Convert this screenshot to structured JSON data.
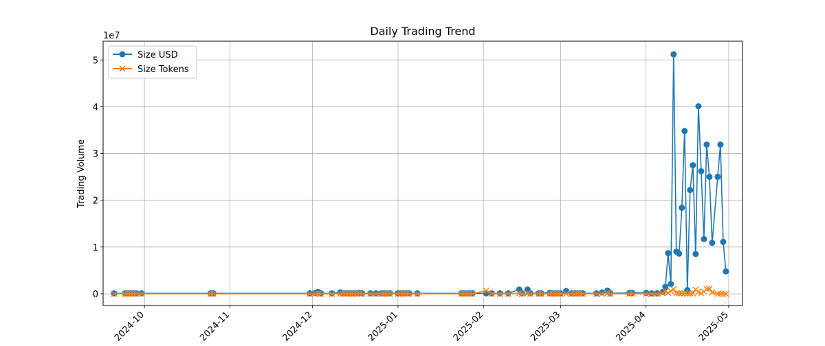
{
  "chart_data": {
    "type": "line",
    "title": "Daily Trading Trend",
    "xlabel": "",
    "ylabel": "Trading Volume",
    "y_offset_text": "1e7",
    "x_ticks": [
      "2024-10",
      "2024-11",
      "2024-12",
      "2025-01",
      "2025-02",
      "2025-03",
      "2025-04",
      "2025-05"
    ],
    "y_ticks": [
      0,
      1,
      2,
      3,
      4,
      5
    ],
    "xlim": [
      "2024-09-16",
      "2025-05-06"
    ],
    "ylim": [
      -2500000,
      54000000
    ],
    "grid": true,
    "legend_position": "top-left",
    "series": [
      {
        "name": "Size USD",
        "color": "#1f77b4",
        "marker": "circle",
        "points": [
          [
            "2024-09-20",
            100000
          ],
          [
            "2024-09-24",
            100000
          ],
          [
            "2024-09-25",
            100000
          ],
          [
            "2024-09-26",
            100000
          ],
          [
            "2024-09-27",
            100000
          ],
          [
            "2024-09-28",
            100000
          ],
          [
            "2024-09-30",
            100000
          ],
          [
            "2024-10-25",
            100000
          ],
          [
            "2024-10-26",
            100000
          ],
          [
            "2024-11-30",
            100000
          ],
          [
            "2024-12-02",
            200000
          ],
          [
            "2024-12-03",
            400000
          ],
          [
            "2024-12-04",
            100000
          ],
          [
            "2024-12-08",
            100000
          ],
          [
            "2024-12-11",
            300000
          ],
          [
            "2024-12-12",
            100000
          ],
          [
            "2024-12-13",
            100000
          ],
          [
            "2024-12-14",
            100000
          ],
          [
            "2024-12-15",
            100000
          ],
          [
            "2024-12-16",
            100000
          ],
          [
            "2024-12-17",
            100000
          ],
          [
            "2024-12-18",
            200000
          ],
          [
            "2024-12-19",
            100000
          ],
          [
            "2024-12-22",
            100000
          ],
          [
            "2024-12-24",
            100000
          ],
          [
            "2024-12-26",
            100000
          ],
          [
            "2024-12-27",
            100000
          ],
          [
            "2024-12-28",
            100000
          ],
          [
            "2024-12-29",
            100000
          ],
          [
            "2025-01-01",
            100000
          ],
          [
            "2025-01-02",
            100000
          ],
          [
            "2025-01-03",
            100000
          ],
          [
            "2025-01-04",
            100000
          ],
          [
            "2025-01-05",
            100000
          ],
          [
            "2025-01-08",
            100000
          ],
          [
            "2025-01-24",
            100000
          ],
          [
            "2025-01-25",
            100000
          ],
          [
            "2025-01-26",
            100000
          ],
          [
            "2025-01-27",
            100000
          ],
          [
            "2025-01-28",
            100000
          ],
          [
            "2025-02-02",
            100000
          ],
          [
            "2025-02-04",
            100000
          ],
          [
            "2025-02-07",
            100000
          ],
          [
            "2025-02-10",
            100000
          ],
          [
            "2025-02-14",
            900000
          ],
          [
            "2025-02-15",
            100000
          ],
          [
            "2025-02-17",
            900000
          ],
          [
            "2025-02-18",
            100000
          ],
          [
            "2025-02-21",
            100000
          ],
          [
            "2025-02-22",
            100000
          ],
          [
            "2025-02-25",
            200000
          ],
          [
            "2025-02-26",
            100000
          ],
          [
            "2025-02-27",
            100000
          ],
          [
            "2025-02-28",
            100000
          ],
          [
            "2025-03-01",
            100000
          ],
          [
            "2025-03-03",
            600000
          ],
          [
            "2025-03-05",
            100000
          ],
          [
            "2025-03-06",
            100000
          ],
          [
            "2025-03-07",
            100000
          ],
          [
            "2025-03-08",
            100000
          ],
          [
            "2025-03-09",
            100000
          ],
          [
            "2025-03-14",
            100000
          ],
          [
            "2025-03-16",
            300000
          ],
          [
            "2025-03-18",
            700000
          ],
          [
            "2025-03-19",
            100000
          ],
          [
            "2025-03-26",
            200000
          ],
          [
            "2025-03-27",
            200000
          ],
          [
            "2025-04-01",
            200000
          ],
          [
            "2025-04-03",
            100000
          ],
          [
            "2025-04-05",
            100000
          ],
          [
            "2025-04-07",
            400000
          ],
          [
            "2025-04-08",
            1500000
          ],
          [
            "2025-04-09",
            8700000
          ],
          [
            "2025-04-10",
            2100000
          ],
          [
            "2025-04-11",
            51200000
          ],
          [
            "2025-04-12",
            9000000
          ],
          [
            "2025-04-13",
            8600000
          ],
          [
            "2025-04-14",
            18400000
          ],
          [
            "2025-04-15",
            34800000
          ],
          [
            "2025-04-16",
            800000
          ],
          [
            "2025-04-17",
            22200000
          ],
          [
            "2025-04-18",
            27500000
          ],
          [
            "2025-04-19",
            8500000
          ],
          [
            "2025-04-20",
            40100000
          ],
          [
            "2025-04-21",
            26200000
          ],
          [
            "2025-04-22",
            11700000
          ],
          [
            "2025-04-23",
            31900000
          ],
          [
            "2025-04-24",
            25000000
          ],
          [
            "2025-04-25",
            10900000
          ],
          [
            "2025-04-27",
            25000000
          ],
          [
            "2025-04-28",
            31900000
          ],
          [
            "2025-04-29",
            11100000
          ],
          [
            "2025-04-30",
            4800000
          ]
        ]
      },
      {
        "name": "Size Tokens",
        "color": "#ff7f0e",
        "marker": "x",
        "points": [
          [
            "2024-09-20",
            0
          ],
          [
            "2024-09-24",
            0
          ],
          [
            "2024-09-25",
            0
          ],
          [
            "2024-09-26",
            0
          ],
          [
            "2024-09-27",
            0
          ],
          [
            "2024-09-28",
            0
          ],
          [
            "2024-09-30",
            0
          ],
          [
            "2024-10-25",
            0
          ],
          [
            "2024-10-26",
            0
          ],
          [
            "2024-11-30",
            0
          ],
          [
            "2024-12-02",
            0
          ],
          [
            "2024-12-03",
            0
          ],
          [
            "2024-12-04",
            0
          ],
          [
            "2024-12-08",
            0
          ],
          [
            "2024-12-11",
            0
          ],
          [
            "2024-12-12",
            0
          ],
          [
            "2024-12-13",
            0
          ],
          [
            "2024-12-14",
            0
          ],
          [
            "2024-12-15",
            0
          ],
          [
            "2024-12-16",
            0
          ],
          [
            "2024-12-17",
            0
          ],
          [
            "2024-12-18",
            0
          ],
          [
            "2024-12-19",
            0
          ],
          [
            "2024-12-22",
            0
          ],
          [
            "2024-12-24",
            0
          ],
          [
            "2024-12-26",
            0
          ],
          [
            "2024-12-27",
            0
          ],
          [
            "2024-12-28",
            0
          ],
          [
            "2024-12-29",
            0
          ],
          [
            "2025-01-01",
            0
          ],
          [
            "2025-01-02",
            0
          ],
          [
            "2025-01-03",
            0
          ],
          [
            "2025-01-04",
            0
          ],
          [
            "2025-01-05",
            0
          ],
          [
            "2025-01-08",
            0
          ],
          [
            "2025-01-24",
            0
          ],
          [
            "2025-01-25",
            0
          ],
          [
            "2025-01-26",
            0
          ],
          [
            "2025-01-27",
            0
          ],
          [
            "2025-01-28",
            0
          ],
          [
            "2025-02-02",
            700000
          ],
          [
            "2025-02-04",
            0
          ],
          [
            "2025-02-07",
            0
          ],
          [
            "2025-02-10",
            0
          ],
          [
            "2025-02-14",
            100000
          ],
          [
            "2025-02-15",
            0
          ],
          [
            "2025-02-17",
            100000
          ],
          [
            "2025-02-18",
            0
          ],
          [
            "2025-02-21",
            0
          ],
          [
            "2025-02-22",
            0
          ],
          [
            "2025-02-25",
            0
          ],
          [
            "2025-02-26",
            0
          ],
          [
            "2025-02-27",
            0
          ],
          [
            "2025-02-28",
            0
          ],
          [
            "2025-03-01",
            0
          ],
          [
            "2025-03-03",
            0
          ],
          [
            "2025-03-05",
            0
          ],
          [
            "2025-03-06",
            0
          ],
          [
            "2025-03-07",
            0
          ],
          [
            "2025-03-08",
            0
          ],
          [
            "2025-03-09",
            0
          ],
          [
            "2025-03-14",
            0
          ],
          [
            "2025-03-16",
            0
          ],
          [
            "2025-03-18",
            100000
          ],
          [
            "2025-03-19",
            0
          ],
          [
            "2025-03-26",
            0
          ],
          [
            "2025-03-27",
            0
          ],
          [
            "2025-04-01",
            0
          ],
          [
            "2025-04-03",
            0
          ],
          [
            "2025-04-05",
            0
          ],
          [
            "2025-04-07",
            100000
          ],
          [
            "2025-04-08",
            500000
          ],
          [
            "2025-04-09",
            200000
          ],
          [
            "2025-04-10",
            600000
          ],
          [
            "2025-04-11",
            1000000
          ],
          [
            "2025-04-12",
            100000
          ],
          [
            "2025-04-13",
            100000
          ],
          [
            "2025-04-14",
            100000
          ],
          [
            "2025-04-15",
            100000
          ],
          [
            "2025-04-16",
            0
          ],
          [
            "2025-04-17",
            100000
          ],
          [
            "2025-04-18",
            100000
          ],
          [
            "2025-04-19",
            900000
          ],
          [
            "2025-04-20",
            400000
          ],
          [
            "2025-04-21",
            100000
          ],
          [
            "2025-04-22",
            500000
          ],
          [
            "2025-04-23",
            1000000
          ],
          [
            "2025-04-24",
            1100000
          ],
          [
            "2025-04-25",
            300000
          ],
          [
            "2025-04-27",
            0
          ],
          [
            "2025-04-28",
            0
          ],
          [
            "2025-04-29",
            0
          ],
          [
            "2025-04-30",
            0
          ]
        ]
      }
    ]
  }
}
